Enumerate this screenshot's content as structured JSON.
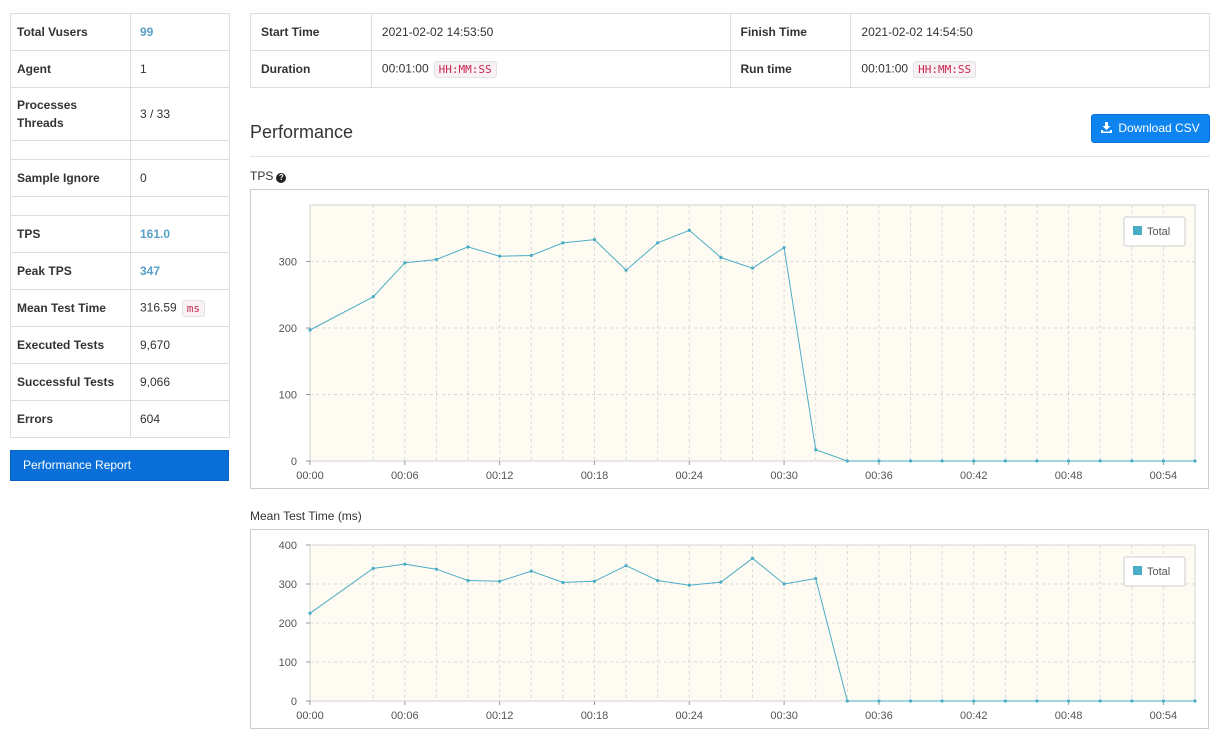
{
  "stats": {
    "total_vusers_label": "Total Vusers",
    "total_vusers": "99",
    "agent_label": "Agent",
    "agent": "1",
    "processes_label": "Processes",
    "threads_label": "Threads",
    "proc_threads": "3 / 33",
    "sample_ignore_label": "Sample Ignore",
    "sample_ignore": "0",
    "tps_label": "TPS",
    "tps": "161.0",
    "peak_tps_label": "Peak TPS",
    "peak_tps": "347",
    "mean_test_time_label": "Mean Test Time",
    "mean_test_time": "316.59",
    "mean_test_time_unit": "ms",
    "executed_tests_label": "Executed Tests",
    "executed_tests": "9,670",
    "successful_tests_label": "Successful Tests",
    "successful_tests": "9,066",
    "errors_label": "Errors",
    "errors": "604"
  },
  "report_button": "Performance Report",
  "info": {
    "start_time_label": "Start Time",
    "start_time": "2021-02-02 14:53:50",
    "finish_time_label": "Finish Time",
    "finish_time": "2021-02-02 14:54:50",
    "duration_label": "Duration",
    "duration": "00:01:00",
    "duration_unit": "HH:MM:SS",
    "run_time_label": "Run time",
    "run_time": "00:01:00",
    "run_time_unit": "HH:MM:SS"
  },
  "performance": {
    "title": "Performance",
    "download_label": "Download CSV",
    "download_icon": "download-icon",
    "tps_chart_label": "TPS",
    "help_icon": "question-circle-icon",
    "mtt_chart_label": "Mean Test Time (ms)"
  },
  "colors": {
    "line": "#4bacc6",
    "plot_bg": "#fefcf2",
    "accent": "#0d84f0",
    "link_value": "#5a9fc8"
  },
  "chart_data": [
    {
      "type": "line",
      "title": "TPS",
      "x_ticks": [
        "00:00",
        "00:06",
        "00:12",
        "00:18",
        "00:24",
        "00:30",
        "00:36",
        "00:42",
        "00:48",
        "00:54"
      ],
      "x_seconds": [
        0,
        4,
        6,
        8,
        10,
        12,
        14,
        16,
        18,
        20,
        22,
        24,
        26,
        28,
        30,
        32,
        34,
        36,
        38,
        40,
        42,
        44,
        46,
        48,
        50,
        52,
        54,
        56
      ],
      "series": [
        {
          "name": "Total",
          "values": [
            197,
            247,
            298,
            303,
            322,
            308,
            309,
            328,
            333,
            287,
            328,
            347,
            306,
            290,
            321,
            17,
            0,
            0,
            0,
            0,
            0,
            0,
            0,
            0,
            0,
            0,
            0,
            0
          ]
        }
      ],
      "y_ticks": [
        0,
        100,
        200,
        300
      ],
      "ylim": [
        0,
        385
      ],
      "xlim": [
        0,
        56
      ],
      "legend": "top-right",
      "grid": true
    },
    {
      "type": "line",
      "title": "Mean Test Time (ms)",
      "x_ticks": [
        "00:00",
        "00:06",
        "00:12",
        "00:18",
        "00:24",
        "00:30",
        "00:36",
        "00:42",
        "00:48",
        "00:54"
      ],
      "x_seconds": [
        0,
        4,
        6,
        8,
        10,
        12,
        14,
        16,
        18,
        20,
        22,
        24,
        26,
        28,
        30,
        32,
        34,
        36,
        38,
        40,
        42,
        44,
        46,
        48,
        50,
        52,
        54,
        56
      ],
      "series": [
        {
          "name": "Total",
          "values": [
            225,
            340,
            351,
            338,
            309,
            307,
            333,
            304,
            307,
            347,
            309,
            297,
            305,
            366,
            300,
            314,
            0,
            0,
            0,
            0,
            0,
            0,
            0,
            0,
            0,
            0,
            0,
            0
          ]
        }
      ],
      "y_ticks": [
        0,
        100,
        200,
        300,
        400
      ],
      "ylim": [
        0,
        400
      ],
      "xlim": [
        0,
        56
      ],
      "legend": "top-right",
      "grid": true
    }
  ]
}
